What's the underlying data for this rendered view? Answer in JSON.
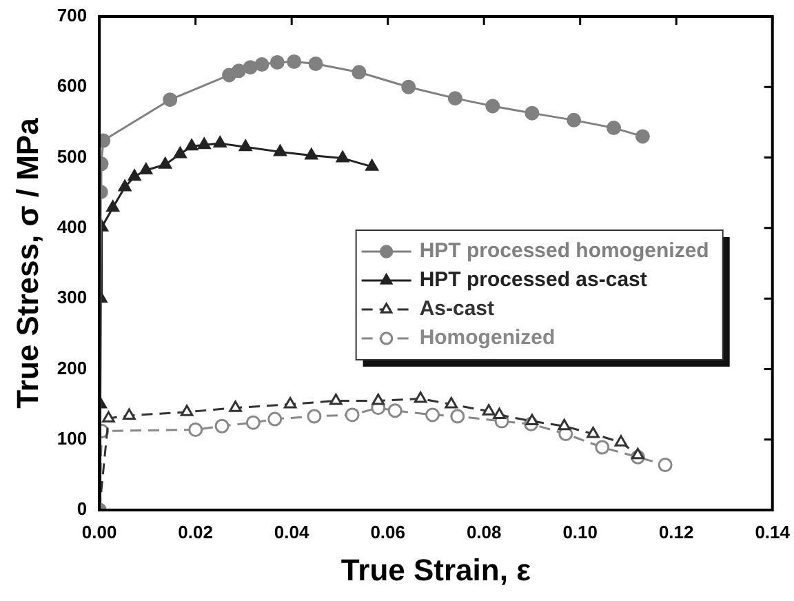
{
  "chart_data": {
    "type": "line",
    "xlabel": "True Strain, ε",
    "ylabel": "True Stress, σ / MPa",
    "xlim": [
      0,
      0.14
    ],
    "xticks": [
      {
        "value": 0,
        "label": "0.00"
      },
      {
        "value": 0.02,
        "label": "0.02"
      },
      {
        "value": 0.04,
        "label": "0.04"
      },
      {
        "value": 0.06,
        "label": "0.06"
      },
      {
        "value": 0.08,
        "label": "0.08"
      },
      {
        "value": 0.1,
        "label": "0.10"
      },
      {
        "value": 0.12,
        "label": "0.12"
      },
      {
        "value": 0.14,
        "label": "0.14"
      }
    ],
    "ylim": [
      0,
      700
    ],
    "yticks": [
      0,
      100,
      200,
      300,
      400,
      500,
      600,
      700
    ],
    "grid": false,
    "legend": "right",
    "series": [
      {
        "name": "HPT processed homogenized",
        "color": "#808080",
        "marker": "circle",
        "line_style": "solid",
        "x": [
          0,
          0.0003,
          0.0004,
          0.0008,
          0.0147,
          0.027,
          0.029,
          0.0314,
          0.0338,
          0.037,
          0.0405,
          0.045,
          0.054,
          0.0643,
          0.074,
          0.0818,
          0.09,
          0.0987,
          0.107,
          0.113
        ],
        "values": [
          0,
          451,
          491,
          524,
          582,
          617,
          623,
          628,
          632,
          635,
          636,
          633,
          621,
          600,
          584,
          573,
          563,
          553,
          542,
          530
        ]
      },
      {
        "name": "HPT processed as-cast",
        "color": "#222222",
        "marker": "triangle",
        "line_style": "solid",
        "x": [
          0,
          0.0002,
          0.0003,
          0.0005,
          0.0028,
          0.0053,
          0.0073,
          0.0097,
          0.0137,
          0.0168,
          0.0192,
          0.0218,
          0.0251,
          0.0304,
          0.0376,
          0.0441,
          0.0506,
          0.0567
        ],
        "values": [
          0,
          150,
          300,
          401,
          429,
          458,
          473,
          482,
          490,
          505,
          516,
          518,
          520,
          515,
          508,
          503,
          499,
          487
        ]
      },
      {
        "name": "As-cast",
        "color": "#333333",
        "marker": "triangle",
        "line_style": "dashed",
        "x": [
          0,
          0.0019,
          0.0062,
          0.0182,
          0.0283,
          0.0397,
          0.0492,
          0.058,
          0.0668,
          0.0732,
          0.081,
          0.0832,
          0.09,
          0.0967,
          0.1027,
          0.1085,
          0.112
        ],
        "values": [
          0,
          130,
          134,
          139,
          145,
          150,
          155,
          155,
          158,
          150,
          140,
          135,
          126,
          119,
          108,
          96,
          78
        ]
      },
      {
        "name": "Homogenized",
        "color": "#888888",
        "marker": "circle",
        "line_style": "dashed",
        "x": [
          0,
          0.0005,
          0.02,
          0.0255,
          0.032,
          0.0365,
          0.0447,
          0.0526,
          0.058,
          0.0615,
          0.0693,
          0.0745,
          0.0837,
          0.0898,
          0.097,
          0.1046,
          0.112,
          0.1177
        ],
        "values": [
          0,
          112,
          114,
          119,
          124,
          129,
          133,
          135,
          145,
          141,
          135,
          133,
          126,
          122,
          108,
          89,
          75,
          64
        ]
      }
    ]
  }
}
